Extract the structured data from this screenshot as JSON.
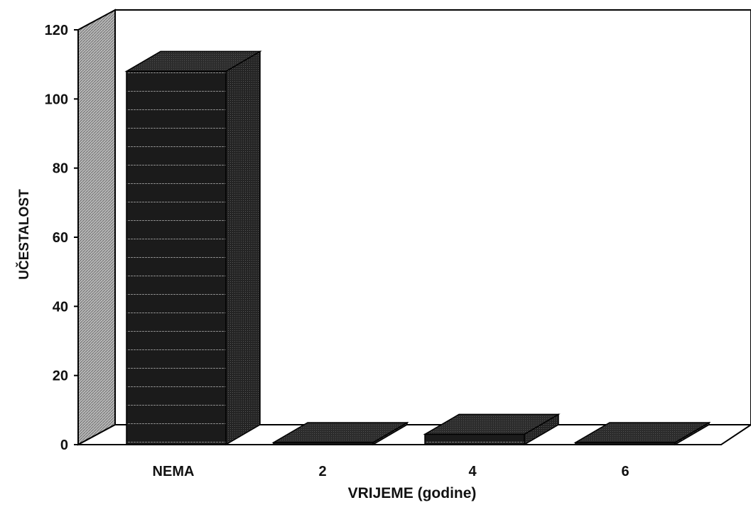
{
  "chart_data": {
    "type": "bar",
    "title": "",
    "xlabel": "VRIJEME (godine)",
    "ylabel": "UČESTALOST",
    "categories": [
      "NEMA",
      "2",
      "4",
      "6"
    ],
    "values": [
      108,
      0.3,
      3,
      0.3
    ],
    "ylim": [
      0,
      120
    ],
    "yticks": [
      "0",
      "20",
      "40",
      "60",
      "80",
      "100",
      "120"
    ],
    "grid": false,
    "legend": "none",
    "style": "3d",
    "colors": {
      "bar_front": "#1b1b1b",
      "bar_side": "#2a2a2a",
      "bar_top": "#2c2c2c",
      "wall": "#a9a9a9"
    }
  }
}
